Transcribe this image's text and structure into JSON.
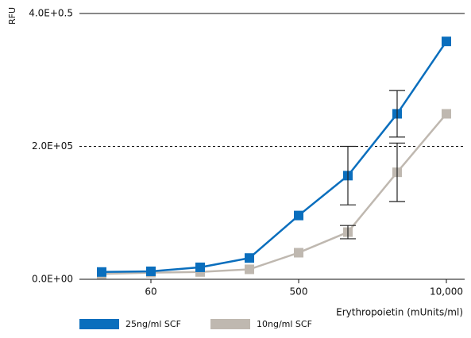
{
  "chart_data": {
    "type": "line",
    "y_label": "RFU",
    "x_label": "Erythropoietin (mUnits/ml)",
    "categories": [
      null,
      "60",
      null,
      null,
      "500",
      null,
      null,
      "10,000"
    ],
    "series": [
      {
        "name": "25ng/ml SCF",
        "color": "#0a6ebd",
        "values": [
          11000,
          12000,
          18000,
          32000,
          96000,
          156000,
          249000,
          358000
        ],
        "errors": [
          null,
          null,
          null,
          null,
          null,
          44000,
          35000,
          null
        ]
      },
      {
        "name": "10ng/ml SCF",
        "color": "#bfb8b0",
        "values": [
          8000,
          10000,
          11000,
          15000,
          40000,
          71000,
          161000,
          249000
        ],
        "errors": [
          null,
          null,
          null,
          null,
          null,
          10000,
          44000,
          null
        ]
      }
    ],
    "ylim": [
      0,
      400000
    ],
    "yticks": [
      {
        "value": 0,
        "label": "0.0E+00"
      },
      {
        "value": 200000,
        "label": "2.0E+05"
      },
      {
        "value": 400000,
        "label": "4.0E+0.5"
      }
    ],
    "grid": true
  }
}
